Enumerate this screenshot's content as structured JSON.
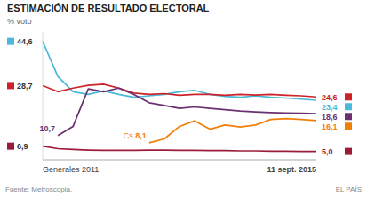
{
  "chart_data": {
    "type": "line",
    "title": "ESTIMACIÓN DE RESULTADO ELECTORAL",
    "ylabel": "% voto",
    "annotations": [
      "Fuente: Metroscopia.",
      "EL PAÍS"
    ],
    "categories": [
      "Generales 2011",
      null,
      null,
      null,
      null,
      null,
      null,
      null,
      null,
      null,
      null,
      null,
      null,
      null,
      null,
      null,
      null,
      null,
      "11 sept. 2015"
    ],
    "ylim": [
      2,
      48
    ],
    "grid": false,
    "tick_labels": "x",
    "data_labels": true,
    "series": [
      {
        "color": "#4ab8d8",
        "values": [
          44.6,
          32.0,
          26.5,
          25.5,
          26.8,
          25.5,
          24.5,
          25.0,
          25.5,
          26.5,
          27.0,
          25.5,
          24.8,
          24.5,
          25.0,
          24.5,
          24.2,
          23.8,
          23.4
        ],
        "value_labels": [
          "44,6",
          null,
          null,
          null,
          null,
          null,
          null,
          null,
          null,
          null,
          null,
          null,
          null,
          null,
          null,
          null,
          null,
          null,
          "23,4"
        ]
      },
      {
        "color": "#cc2229",
        "values": [
          28.7,
          26.5,
          27.8,
          28.8,
          29.2,
          27.8,
          26.0,
          25.5,
          25.8,
          25.2,
          25.5,
          25.5,
          25.2,
          25.5,
          25.3,
          25.5,
          25.2,
          25.0,
          24.6
        ],
        "value_labels": [
          "28,7",
          null,
          null,
          null,
          null,
          null,
          null,
          null,
          null,
          null,
          null,
          null,
          null,
          null,
          null,
          null,
          null,
          null,
          "24,6"
        ]
      },
      {
        "color": "#9b1c3a",
        "values": [
          6.9,
          6.0,
          5.7,
          5.5,
          5.4,
          5.4,
          5.4,
          5.5,
          5.5,
          5.4,
          5.4,
          5.3,
          5.3,
          5.2,
          5.2,
          5.1,
          5.1,
          5.0,
          5.0
        ],
        "value_labels": [
          "6,9",
          null,
          null,
          null,
          null,
          null,
          null,
          null,
          null,
          null,
          null,
          null,
          null,
          null,
          null,
          null,
          null,
          null,
          "5,0"
        ]
      },
      {
        "color": "#6b3070",
        "values": [
          null,
          10.7,
          14.0,
          27.5,
          26.5,
          27.8,
          25.5,
          22.5,
          21.5,
          20.5,
          21.0,
          20.5,
          20.0,
          19.5,
          19.2,
          19.0,
          18.8,
          18.7,
          18.6
        ],
        "value_labels": [
          null,
          "10,7",
          null,
          null,
          null,
          null,
          null,
          null,
          null,
          null,
          null,
          null,
          null,
          null,
          null,
          null,
          null,
          null,
          "18,6"
        ]
      },
      {
        "name": "Cs",
        "color": "#f07f09",
        "values": [
          null,
          null,
          null,
          null,
          null,
          null,
          null,
          8.1,
          9.5,
          14.0,
          16.0,
          13.0,
          14.5,
          13.8,
          14.5,
          16.5,
          16.8,
          16.5,
          16.1
        ],
        "value_labels": [
          null,
          null,
          null,
          null,
          null,
          null,
          null,
          "8,1",
          null,
          null,
          null,
          null,
          null,
          null,
          null,
          null,
          null,
          null,
          "16,1"
        ]
      }
    ]
  }
}
